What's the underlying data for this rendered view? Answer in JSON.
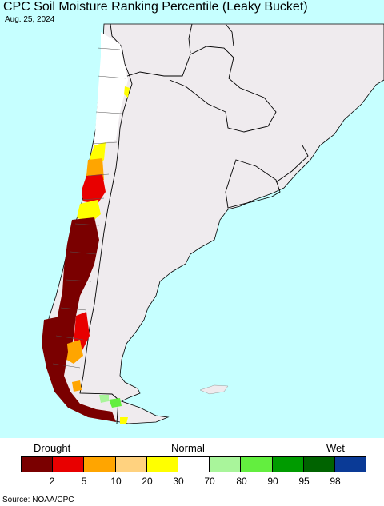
{
  "map": {
    "title": "CPC Soil Moisture Ranking Percentile (Leaky Bucket)",
    "date": "Aug. 25, 2024",
    "source": "Source: NOAA/CPC",
    "colors": {
      "ocean": "#c6ffff",
      "land": "#efebee",
      "border": "#000000"
    }
  },
  "legend": {
    "label_left": "Drought",
    "label_center": "Normal",
    "label_right": "Wet",
    "colors": [
      "#7a0000",
      "#e80000",
      "#ffa500",
      "#ffd27f",
      "#ffff00",
      "#ffffff",
      "#a9f59b",
      "#63ee3f",
      "#009b00",
      "#006300",
      "#0a3a96"
    ],
    "ticks": [
      "2",
      "5",
      "10",
      "20",
      "30",
      "70",
      "80",
      "90",
      "95",
      "98"
    ]
  }
}
